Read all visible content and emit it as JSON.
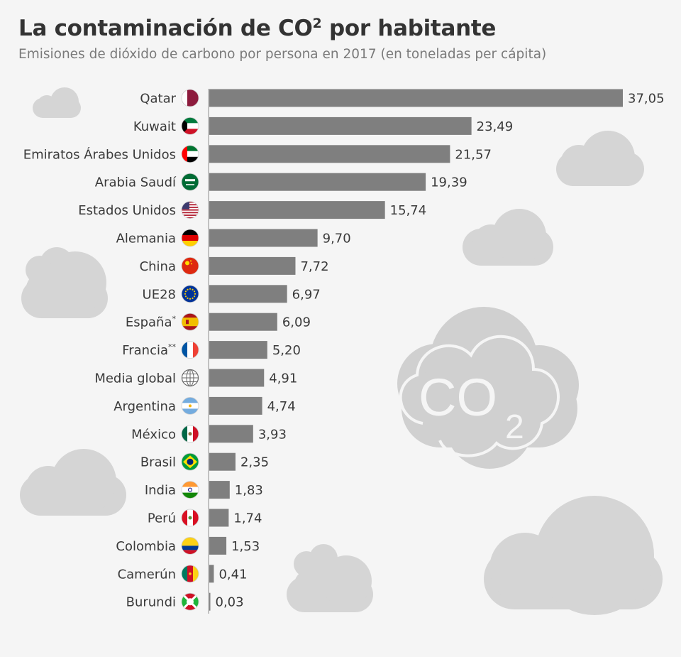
{
  "title": "La contaminación de CO",
  "title_sup": "2",
  "title_tail": " por habitante",
  "subtitle": "Emisiones de dióxido de carbono por persona en 2017 (en toneladas per cápita)",
  "co2_badge": {
    "text": "CO",
    "sub": "2"
  },
  "colors": {
    "bar": "#7f7f7f",
    "cloud": "#d3d3d3",
    "text": "#3a3a3a"
  },
  "chart_data": {
    "type": "bar",
    "orientation": "horizontal",
    "categories": [
      "Qatar",
      "Kuwait",
      "Emiratos Árabes Unidos",
      "Arabia Saudí",
      "Estados Unidos",
      "Alemania",
      "China",
      "UE28",
      "España",
      "Francia",
      "Media global",
      "Argentina",
      "México",
      "Brasil",
      "India",
      "Perú",
      "Colombia",
      "Camerún",
      "Burundi"
    ],
    "category_marks": [
      "",
      "",
      "",
      "",
      "",
      "",
      "",
      "",
      "*",
      "**",
      "",
      "",
      "",
      "",
      "",
      "",
      "",
      "",
      ""
    ],
    "values": [
      37.05,
      23.49,
      21.57,
      19.39,
      15.74,
      9.7,
      7.72,
      6.97,
      6.09,
      5.2,
      4.91,
      4.74,
      3.93,
      2.35,
      1.83,
      1.74,
      1.53,
      0.41,
      0.03
    ],
    "value_labels": [
      "37,05",
      "23,49",
      "21,57",
      "19,39",
      "15,74",
      "9,70",
      "7,72",
      "6,97",
      "6,09",
      "5,20",
      "4,91",
      "4,74",
      "3,93",
      "2,35",
      "1,83",
      "1,74",
      "1,53",
      "0,41",
      "0,03"
    ],
    "icons": [
      "flag-qatar-icon",
      "flag-kuwait-icon",
      "flag-uae-icon",
      "flag-saudi-arabia-icon",
      "flag-usa-icon",
      "flag-germany-icon",
      "flag-china-icon",
      "flag-eu-icon",
      "flag-spain-icon",
      "flag-france-icon",
      "globe-icon",
      "flag-argentina-icon",
      "flag-mexico-icon",
      "flag-brazil-icon",
      "flag-india-icon",
      "flag-peru-icon",
      "flag-colombia-icon",
      "flag-cameroon-icon",
      "flag-burundi-icon"
    ],
    "xlim": [
      0,
      37.05
    ],
    "grid": false,
    "legend": "none"
  }
}
